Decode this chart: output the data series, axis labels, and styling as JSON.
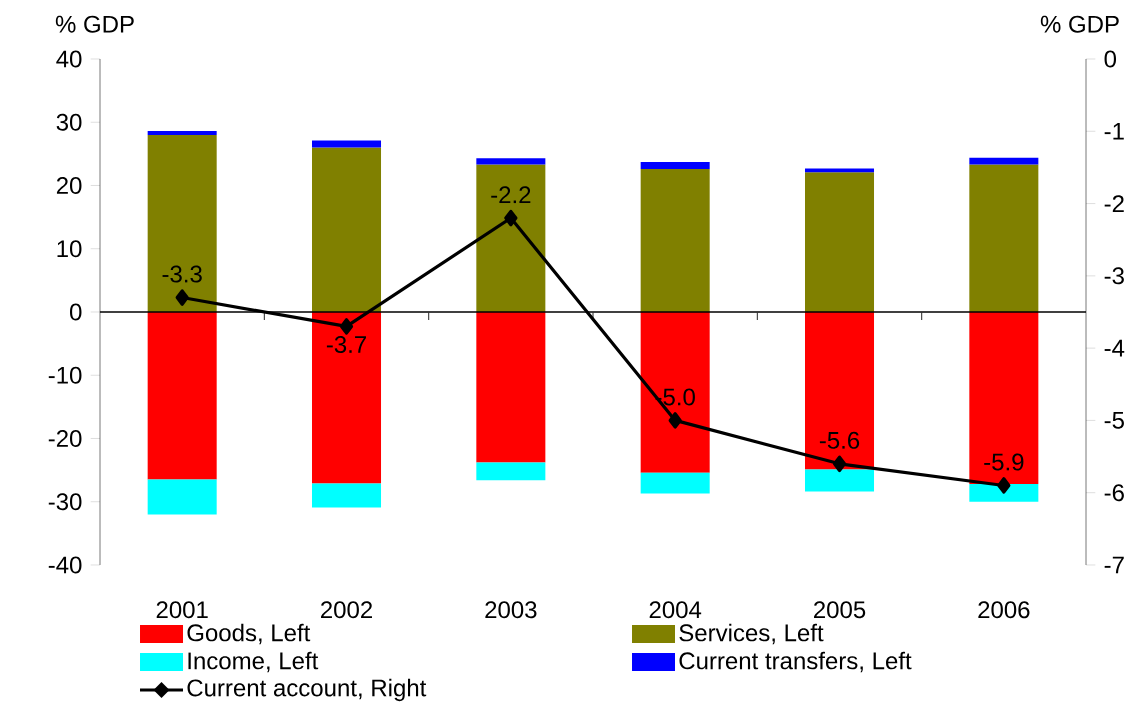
{
  "chart_data": {
    "type": "bar",
    "stacked": true,
    "ylabel": "% GDP",
    "y2label": "% GDP",
    "categories": [
      "2001",
      "2002",
      "2003",
      "2004",
      "2005",
      "2006"
    ],
    "series": [
      {
        "name": "Goods, Left",
        "color": "#ff0000",
        "values": [
          -26.5,
          -27.1,
          -23.8,
          -25.4,
          -24.9,
          -27.2
        ]
      },
      {
        "name": "Services, Left",
        "color": "#808000",
        "values": [
          28.0,
          26.0,
          23.3,
          22.6,
          22.1,
          23.3
        ]
      },
      {
        "name": "Income, Left",
        "color": "#00ffff",
        "values": [
          -5.5,
          -3.8,
          -2.8,
          -3.3,
          -3.5,
          -2.8
        ]
      },
      {
        "name": "Current transfers, Left",
        "color": "#0000ff",
        "values": [
          0.6,
          1.1,
          1.0,
          1.1,
          0.6,
          1.1
        ]
      },
      {
        "name": "Current account, Right",
        "type": "line",
        "axis": "y2",
        "color": "#000000",
        "values": [
          -3.3,
          -3.7,
          -2.2,
          -5.0,
          -5.6,
          -5.9
        ],
        "value_labels": [
          "-3.3",
          "-3.7",
          "-2.2",
          "-5.0",
          "-5.6",
          "-5.9"
        ]
      }
    ],
    "ylim": [
      -40,
      40
    ],
    "yticks": [
      -40,
      -30,
      -20,
      -10,
      0,
      10,
      20,
      30,
      40
    ],
    "y2lim": [
      -7,
      0
    ],
    "y2ticks": [
      -7,
      -6,
      -5,
      -4,
      -3,
      -2,
      -1,
      0
    ],
    "marker": "diamond",
    "legend": "bottom"
  }
}
